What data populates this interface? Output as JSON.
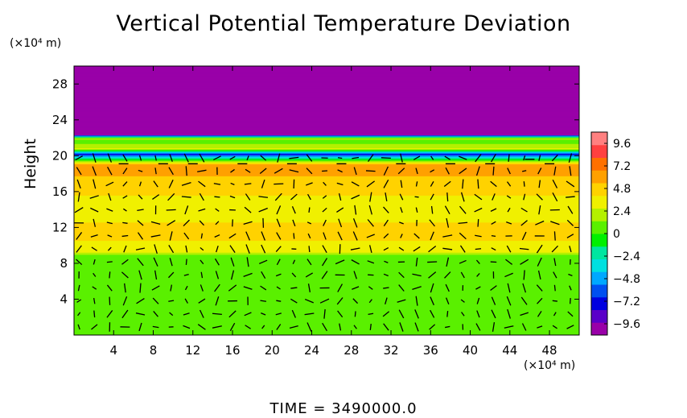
{
  "chart_data": {
    "type": "heatmap",
    "title": "Vertical Potential Temperature Deviation",
    "xlabel": "",
    "ylabel": "Height",
    "x_unit": "(×10⁴ m)",
    "y_unit": "(×10⁴ m)",
    "xlim": [
      0,
      51
    ],
    "ylim": [
      0,
      30
    ],
    "x_ticks": [
      "4",
      "8",
      "12",
      "16",
      "20",
      "24",
      "28",
      "32",
      "36",
      "40",
      "44",
      "48"
    ],
    "x_tick_values": [
      4,
      8,
      12,
      16,
      20,
      24,
      28,
      32,
      36,
      40,
      44,
      48
    ],
    "y_ticks": [
      "4",
      "8",
      "12",
      "16",
      "20",
      "24",
      "28"
    ],
    "y_tick_values": [
      4,
      8,
      12,
      16,
      20,
      24,
      28
    ],
    "colorbar": {
      "min": -10.8,
      "max": 10.8,
      "labels": [
        "9.6",
        "7.2",
        "4.8",
        "2.4",
        "0",
        "−2.4",
        "−4.8",
        "−7.2",
        "−9.6"
      ],
      "label_values": [
        9.6,
        7.2,
        4.8,
        2.4,
        0,
        -2.4,
        -4.8,
        -7.2,
        -9.6
      ],
      "colors": [
        "#9900a8",
        "#5a00c8",
        "#0000e0",
        "#0050f0",
        "#00a8ff",
        "#00e0e0",
        "#00e6a0",
        "#00f000",
        "#5af000",
        "#b4f000",
        "#f0f000",
        "#ffd200",
        "#ffa000",
        "#ff7000",
        "#ff4040",
        "#ff8080"
      ]
    },
    "profile": {
      "heights": [
        0,
        8.9,
        9.4,
        11.5,
        14,
        16.8,
        17.5,
        19.0,
        19.8,
        20.2,
        20.8,
        21.5,
        22.0,
        22.4,
        23,
        30
      ],
      "values": [
        0.6,
        0.6,
        3.6,
        4.4,
        3.6,
        4.4,
        5.2,
        6.2,
        -2.5,
        -7.5,
        3.0,
        0.8,
        1.6,
        -10.5,
        -10.6,
        -10.6
      ]
    },
    "legend_position": "right",
    "grid": false
  },
  "footer": "TIME  =  3490000.0"
}
